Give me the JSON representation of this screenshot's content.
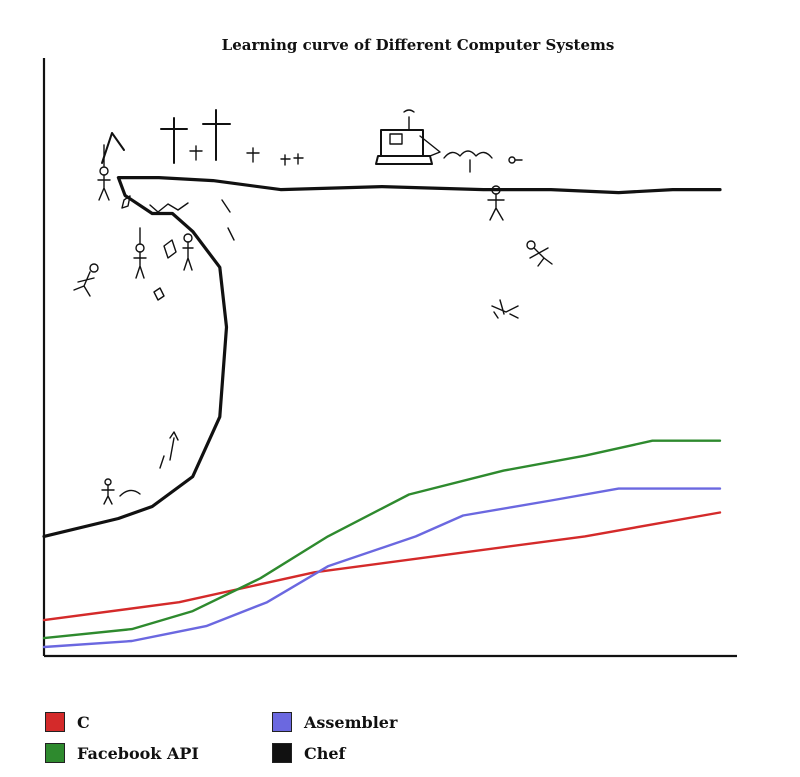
{
  "chart_data": {
    "type": "line",
    "title": "Learning curve of Different Computer Systems",
    "xlabel": "",
    "ylabel": "",
    "xlim": [
      0,
      10
    ],
    "ylim": [
      0,
      10
    ],
    "grid": false,
    "legend_position": "bottom",
    "series": [
      {
        "name": "C",
        "color": "#d42a2a",
        "x": [
          0,
          2,
          4,
          6,
          8,
          10
        ],
        "y": [
          0.6,
          0.9,
          1.4,
          1.7,
          2.0,
          2.4
        ]
      },
      {
        "name": "Facebook API",
        "color": "#2e8a2e",
        "x": [
          0,
          1.3,
          2.2,
          3.2,
          4.2,
          5.4,
          6.8,
          8.0,
          9.0,
          10
        ],
        "y": [
          0.3,
          0.45,
          0.75,
          1.3,
          2.0,
          2.7,
          3.1,
          3.35,
          3.6,
          3.6
        ]
      },
      {
        "name": "Assembler",
        "color": "#6b68e0",
        "x": [
          0,
          1.3,
          2.4,
          3.3,
          4.2,
          5.5,
          6.2,
          7.5,
          8.5,
          10
        ],
        "y": [
          0.15,
          0.25,
          0.5,
          0.9,
          1.5,
          2.0,
          2.35,
          2.6,
          2.8,
          2.8
        ]
      },
      {
        "name": "Chef",
        "color": "#111111",
        "x": [
          0,
          1.1,
          1.6,
          2.2,
          2.6,
          2.7,
          2.6,
          2.2,
          1.9,
          1.6,
          1.2,
          1.1,
          1.7,
          2.5,
          3.5,
          5.0,
          6.5,
          7.5,
          8.5,
          9.3,
          10
        ],
        "y": [
          2.0,
          2.3,
          2.5,
          3.0,
          4.0,
          5.5,
          6.5,
          7.1,
          7.4,
          7.4,
          7.7,
          8.0,
          8.0,
          7.95,
          7.8,
          7.85,
          7.8,
          7.8,
          7.75,
          7.8,
          7.8
        ]
      }
    ]
  },
  "colors": {
    "axis": "#111111",
    "c": "#d42a2a",
    "facebook_api": "#2e8a2e",
    "assembler": "#6b68e0",
    "chef": "#111111"
  }
}
